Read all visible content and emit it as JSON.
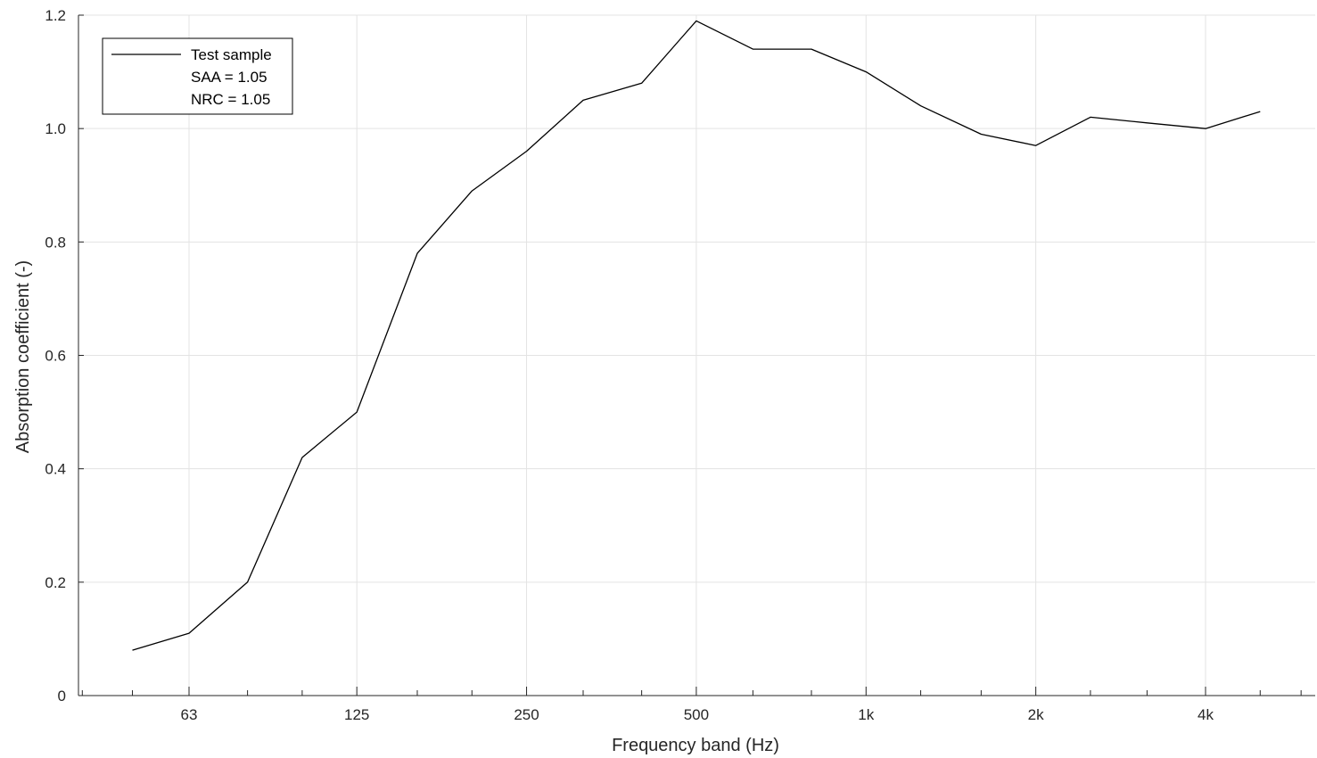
{
  "chart_data": {
    "type": "line",
    "xscale": "log",
    "xlabel": "Frequency band (Hz)",
    "ylabel": "Absorption coefficient (-)",
    "ylim": [
      0,
      1.2
    ],
    "yticks": [
      0,
      0.2,
      0.4,
      0.6,
      0.8,
      1.0,
      1.2
    ],
    "ytick_labels": [
      "0",
      "0.2",
      "0.4",
      "0.6",
      "0.8",
      "1.0",
      "1.2"
    ],
    "xticks": [
      63,
      125,
      250,
      500,
      1000,
      2000,
      4000
    ],
    "xtick_labels": [
      "63",
      "125",
      "250",
      "500",
      "1k",
      "2k",
      "4k"
    ],
    "grid": true,
    "legend_position": "top-left",
    "legend": [
      "Test sample",
      "SAA = 1.05",
      "NRC = 1.05"
    ],
    "series": [
      {
        "name": "Test sample",
        "color": "#000000",
        "x": [
          50,
          63,
          80,
          100,
          125,
          160,
          200,
          250,
          315,
          400,
          500,
          630,
          800,
          1000,
          1250,
          1600,
          2000,
          2500,
          3150,
          4000,
          5000
        ],
        "y": [
          0.08,
          0.11,
          0.2,
          0.42,
          0.5,
          0.78,
          0.89,
          0.96,
          1.05,
          1.08,
          1.19,
          1.14,
          1.14,
          1.1,
          1.04,
          0.99,
          0.97,
          1.02,
          1.01,
          1.0,
          1.03
        ]
      }
    ]
  }
}
